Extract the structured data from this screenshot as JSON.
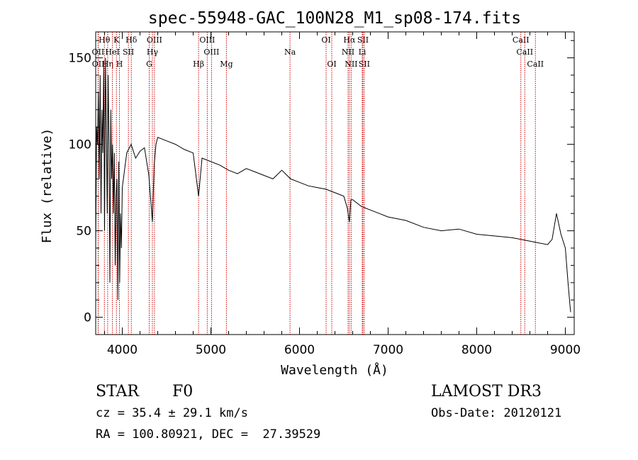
{
  "chart_data": {
    "type": "line",
    "title": "spec-55948-GAC_100N28_M1_sp08-174.fits",
    "xlabel": "Wavelength (Å)",
    "ylabel": "Flux (relative)",
    "xlim": [
      3700,
      9100
    ],
    "ylim": [
      -10,
      165
    ],
    "xticks": [
      4000,
      5000,
      6000,
      7000,
      8000,
      9000
    ],
    "yticks": [
      0,
      50,
      100,
      150
    ],
    "series": [
      {
        "name": "flux",
        "x": [
          3700,
          3710,
          3720,
          3730,
          3740,
          3750,
          3760,
          3770,
          3780,
          3790,
          3800,
          3810,
          3820,
          3830,
          3840,
          3850,
          3860,
          3870,
          3880,
          3890,
          3900,
          3910,
          3920,
          3930,
          3940,
          3950,
          3960,
          3970,
          3980,
          3990,
          4000,
          4050,
          4100,
          4150,
          4200,
          4250,
          4300,
          4340,
          4360,
          4380,
          4400,
          4500,
          4600,
          4700,
          4800,
          4861,
          4900,
          5000,
          5100,
          5200,
          5300,
          5400,
          5500,
          5600,
          5700,
          5800,
          5900,
          6000,
          6100,
          6200,
          6300,
          6400,
          6500,
          6540,
          6563,
          6580,
          6600,
          6700,
          6800,
          6900,
          7000,
          7200,
          7400,
          7600,
          7800,
          8000,
          8200,
          8400,
          8500,
          8600,
          8700,
          8800,
          8850,
          8900,
          8950,
          9000,
          9030,
          9050,
          9060
        ],
        "y": [
          40,
          110,
          100,
          130,
          80,
          140,
          60,
          120,
          95,
          145,
          50,
          150,
          110,
          60,
          140,
          100,
          20,
          120,
          80,
          100,
          60,
          95,
          30,
          70,
          80,
          10,
          90,
          20,
          60,
          40,
          75,
          95,
          100,
          92,
          96,
          98,
          82,
          55,
          88,
          100,
          104,
          102,
          100,
          97,
          95,
          70,
          92,
          90,
          88,
          85,
          83,
          86,
          84,
          82,
          80,
          85,
          80,
          78,
          76,
          75,
          74,
          72,
          70,
          63,
          55,
          68,
          68,
          64,
          62,
          60,
          58,
          56,
          52,
          50,
          51,
          48,
          47,
          46,
          45,
          44,
          43,
          42,
          45,
          60,
          48,
          40,
          20,
          8,
          3
        ]
      }
    ],
    "lines": [
      {
        "name": "Hθ",
        "wave": 3798,
        "row": 1
      },
      {
        "name": "OII",
        "wave": 3727,
        "row": 2
      },
      {
        "name": "OII",
        "wave": 3729,
        "row": 3
      },
      {
        "name": "Hη",
        "wave": 3835,
        "row": 3
      },
      {
        "name": "K",
        "wave": 3934,
        "row": 1
      },
      {
        "name": "HeI",
        "wave": 3889,
        "row": 2
      },
      {
        "name": "SII",
        "wave": 4069,
        "row": 2
      },
      {
        "name": "H",
        "wave": 3968,
        "row": 3
      },
      {
        "name": "Hδ",
        "wave": 4102,
        "row": 1
      },
      {
        "name": "OIII",
        "wave": 4363,
        "row": 1
      },
      {
        "name": "Hγ",
        "wave": 4340,
        "row": 2
      },
      {
        "name": "G",
        "wave": 4304,
        "row": 3
      },
      {
        "name": "OIII",
        "wave": 4959,
        "row": 1
      },
      {
        "name": "OIII",
        "wave": 5007,
        "row": 2
      },
      {
        "name": "Hβ",
        "wave": 4861,
        "row": 3
      },
      {
        "name": "Mg",
        "wave": 5175,
        "row": 3
      },
      {
        "name": "Na",
        "wave": 5893,
        "row": 2
      },
      {
        "name": "OI",
        "wave": 6300,
        "row": 1
      },
      {
        "name": "OI",
        "wave": 6364,
        "row": 3
      },
      {
        "name": "Hα",
        "wave": 6563,
        "row": 1
      },
      {
        "name": "NII",
        "wave": 6548,
        "row": 2
      },
      {
        "name": "NII",
        "wave": 6583,
        "row": 3
      },
      {
        "name": "SII",
        "wave": 6716,
        "row": 1
      },
      {
        "name": "Li",
        "wave": 6708,
        "row": 2
      },
      {
        "name": "SII",
        "wave": 6731,
        "row": 3
      },
      {
        "name": "CaII",
        "wave": 8498,
        "row": 1
      },
      {
        "name": "CaII",
        "wave": 8542,
        "row": 2
      },
      {
        "name": "CaII",
        "wave": 8662,
        "row": 3
      }
    ]
  },
  "info": {
    "class_label": "STAR",
    "subclass": "F0",
    "survey": "LAMOST DR3",
    "cz": "cz = 35.4 ± 29.1 km/s",
    "obs_date": "Obs-Date: 20120121",
    "coords": "RA = 100.80921, DEC =  27.39529"
  },
  "colors": {
    "spectrum": "#000000",
    "line_marker": "#cc0000",
    "axis": "#000000",
    "background": "#ffffff"
  }
}
